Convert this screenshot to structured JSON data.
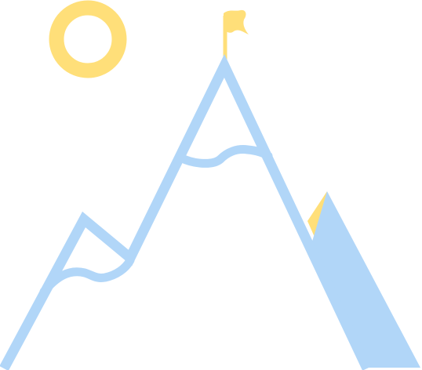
{
  "illustration": {
    "icons": [
      "sun-icon",
      "mountain-icon",
      "flag-icon"
    ],
    "colors": {
      "sun": "#ffdf79",
      "flag": "#ffdf79",
      "mountain_outline": "#b1d6f8",
      "mountain_shadow": "#b1d6f8",
      "accent_peak": "#ffdf79",
      "background": "#ffffff"
    }
  }
}
